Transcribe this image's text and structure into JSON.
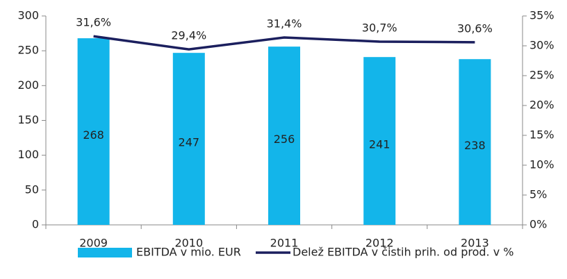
{
  "chart_data": {
    "type": "bar",
    "categories": [
      "2009",
      "2010",
      "2011",
      "2012",
      "2013"
    ],
    "series": [
      {
        "name": "EBITDA v mio. EUR",
        "type": "bar",
        "color": "#13b5ea",
        "values": [
          268,
          247,
          256,
          241,
          238
        ]
      },
      {
        "name": "Delež EBITDA v čistih prih. od prod. v %",
        "type": "line",
        "axis": "y2",
        "color": "#1b1f5e",
        "values": [
          31.6,
          29.4,
          31.4,
          30.7,
          30.6
        ],
        "value_labels": [
          "31,6%",
          "29,4%",
          "31,4%",
          "30,7%",
          "30,6%"
        ]
      }
    ],
    "ylim": [
      0,
      300
    ],
    "yticks": [
      0,
      50,
      100,
      150,
      200,
      250,
      300
    ],
    "y2lim": [
      0,
      35
    ],
    "y2ticks": [
      {
        "value": 0,
        "label": "0%"
      },
      {
        "value": 5,
        "label": "5%"
      },
      {
        "value": 10,
        "label": "10%"
      },
      {
        "value": 15,
        "label": "15%"
      },
      {
        "value": 20,
        "label": "20%"
      },
      {
        "value": 25,
        "label": "25%"
      },
      {
        "value": 30,
        "label": "30%"
      },
      {
        "value": 35,
        "label": "35%"
      }
    ],
    "grid": false,
    "legend": "bottom"
  }
}
